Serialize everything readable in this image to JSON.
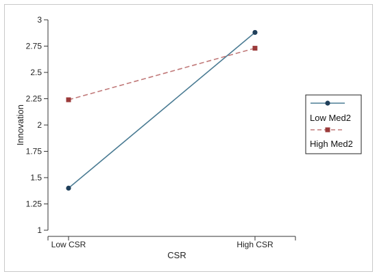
{
  "chart_data": {
    "type": "line",
    "categories": [
      "Low CSR",
      "High CSR"
    ],
    "series": [
      {
        "name": "Low Med2",
        "values": [
          1.4,
          2.88
        ],
        "color": "#4a7b93",
        "dash": "solid",
        "marker": "circle",
        "marker_color": "#1f3f5a"
      },
      {
        "name": "High Med2",
        "values": [
          2.24,
          2.73
        ],
        "color": "#c07878",
        "dash": "dashed",
        "marker": "square",
        "marker_color": "#9b3a3a"
      }
    ],
    "xlabel": "CSR",
    "ylabel": "Innovation",
    "ylim": [
      1,
      3
    ],
    "yticks": [
      1,
      1.25,
      1.5,
      1.75,
      2,
      2.25,
      2.5,
      2.75,
      3
    ],
    "ytick_labels": [
      "1",
      "1.25",
      "1.5",
      "1.75",
      "2",
      "2.25",
      "2.5",
      "2.75",
      "3"
    ],
    "grid": false,
    "legend_position": "right"
  }
}
